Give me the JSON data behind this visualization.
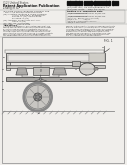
{
  "page_bg": "#f0eeeb",
  "barcode_color": "#111111",
  "header_color": "#444444",
  "text_color": "#333333",
  "diagram_bg": "#f0eeeb",
  "line_color": "#555555",
  "dark_line": "#333333",
  "body_fill": "#e0dedb",
  "frame_fill": "#d8d6d2",
  "spring_fill": "#c8c6c2",
  "wheel_fill": "#d0ceca",
  "tank_fill": "#d5d3cf",
  "ground_color": "#888888"
}
